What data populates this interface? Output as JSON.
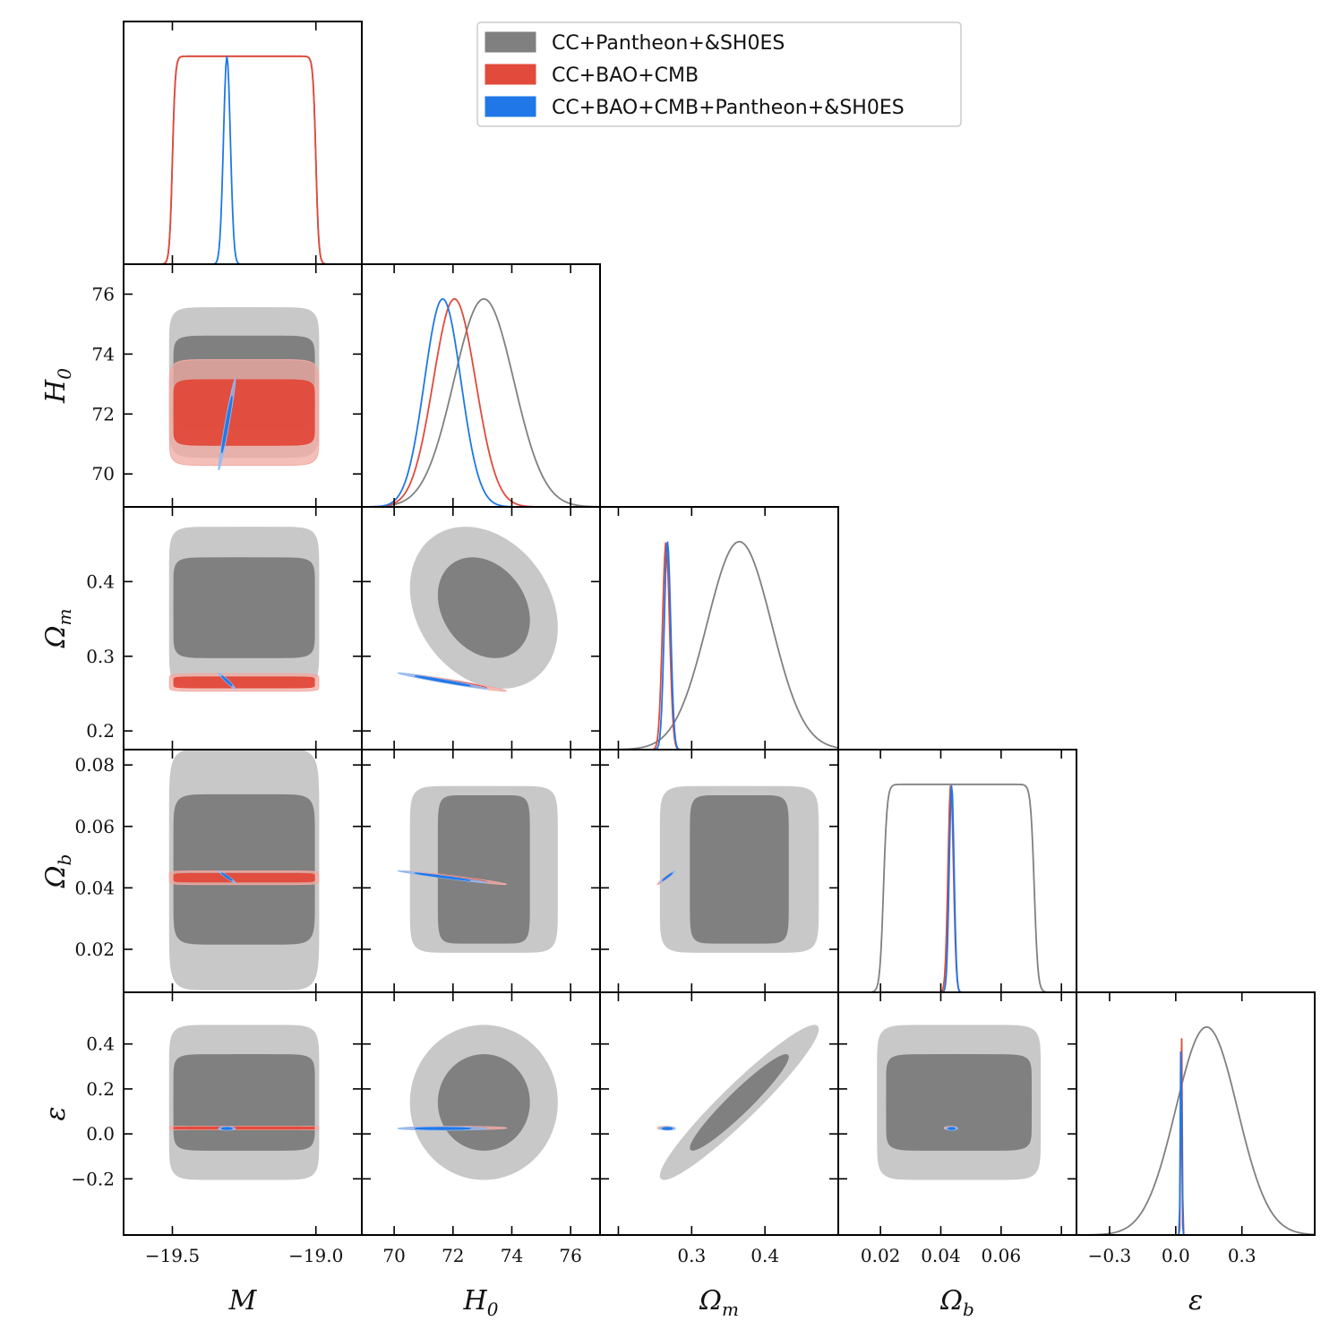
{
  "chart_data": {
    "type": "corner",
    "parameters": [
      {
        "key": "M",
        "label": "M",
        "sub": "",
        "range": [
          -19.67,
          -18.84
        ],
        "ticks": [
          -19.5,
          -19.0
        ],
        "tick_labels": [
          "−19.5",
          "−19.0"
        ]
      },
      {
        "key": "H0",
        "label": "H",
        "sub": "0",
        "range": [
          68.9,
          77.0
        ],
        "ticks": [
          70,
          72,
          74,
          76
        ],
        "tick_labels": [
          "70",
          "72",
          "74",
          "76"
        ]
      },
      {
        "key": "Om",
        "label": "Ω",
        "sub": "m",
        "range": [
          0.175,
          0.5
        ],
        "ticks": [
          0.2,
          0.3,
          0.4
        ],
        "tick_labels": [
          "0.2",
          "0.3",
          "0.4"
        ],
        "diag_tick_labels": [
          "0.3",
          "0.4"
        ]
      },
      {
        "key": "Ob",
        "label": "Ω",
        "sub": "b",
        "range": [
          0.006,
          0.085
        ],
        "ticks": [
          0.02,
          0.04,
          0.06,
          0.08
        ],
        "tick_labels": [
          "0.02",
          "0.04",
          "0.06",
          "0.08"
        ],
        "diag_tick_labels": [
          "0.02",
          "0.04",
          "0.06"
        ]
      },
      {
        "key": "eps",
        "label": "ε",
        "sub": "",
        "range": [
          -0.45,
          0.63
        ],
        "ticks": [
          -0.2,
          0.0,
          0.2,
          0.4
        ],
        "tick_labels": [
          "−0.2",
          "0.0",
          "0.2",
          "0.4"
        ],
        "diag_ticks": [
          -0.3,
          0.0,
          0.3
        ],
        "diag_tick_labels": [
          "−0.3",
          "0.0",
          "0.3"
        ]
      }
    ],
    "legend": {
      "location": "upper-center",
      "entries": [
        {
          "name": "CC+Pantheon+&SH0ES",
          "color": "#808080"
        },
        {
          "name": "CC+BAO+CMB",
          "color": "#e24a3b"
        },
        {
          "name": "CC+BAO+CMB+Pantheon+&SH0ES",
          "color": "#1f77e8"
        }
      ]
    },
    "series": [
      {
        "color": "#808080",
        "fill_inner": "#808080",
        "fill_outer": "#c8c8c8",
        "flat": {
          "M": [
            -19.5,
            -19.0
          ]
        },
        "mean": {
          "M": -19.25,
          "H0": 73.05,
          "Om": 0.365,
          "Ob": 0.046,
          "eps": 0.14
        },
        "sigma": {
          "M": 0.022,
          "H0": 1.02,
          "Om": 0.044,
          "Ob": 0.016,
          "eps": 0.14
        },
        "corr": {
          "M|H0": 0.97,
          "H0|Om": -0.25,
          "Om|eps": 0.95
        }
      },
      {
        "color": "#e24a3b",
        "fill_inner": "#e24a3b",
        "fill_outer": "#f2aaa2",
        "flat": {
          "M": [
            -19.5,
            -19.0
          ]
        },
        "mean": {
          "M": -19.25,
          "H0": 72.05,
          "Om": 0.265,
          "Ob": 0.0433,
          "eps": 0.026
        },
        "sigma": {
          "M": 0.144,
          "H0": 0.72,
          "Om": 0.0048,
          "Ob": 0.0009,
          "eps": 0.003
        },
        "corr": {
          "H0|Om": -0.97,
          "H0|Ob": -0.97,
          "Om|Ob": 0.97
        }
      },
      {
        "color": "#1f77e8",
        "fill_inner": "#1f77e8",
        "fill_outer": "#8fbcf3",
        "mean": {
          "M": -19.31,
          "H0": 71.65,
          "Om": 0.267,
          "Ob": 0.0436,
          "eps": 0.024
        },
        "sigma": {
          "M": 0.012,
          "H0": 0.62,
          "Om": 0.0044,
          "Ob": 0.0008,
          "eps": 0.003
        },
        "corr": {
          "M|H0": 0.97,
          "M|Om": -0.97,
          "M|Ob": -0.97,
          "H0|Om": -0.98,
          "H0|Ob": -0.98,
          "Om|Ob": 0.98
        }
      }
    ]
  }
}
